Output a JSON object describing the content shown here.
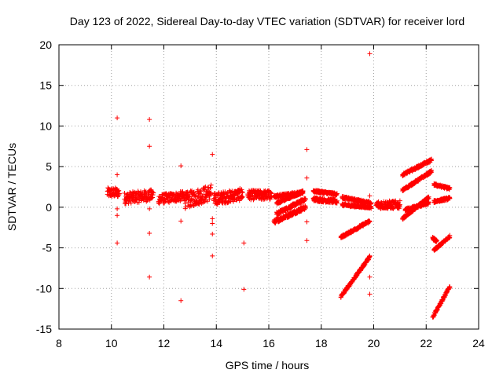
{
  "chart_data": {
    "type": "scatter",
    "title": "Day 123 of 2022, Sidereal Day-to-day VTEC variation (SDTVAR) for receiver lord",
    "xlabel": "GPS time / hours",
    "ylabel": "SDTVAR / TECUs",
    "xlim": [
      8,
      24
    ],
    "ylim": [
      -15,
      20
    ],
    "xticks": [
      "8",
      "10",
      "12",
      "14",
      "16",
      "18",
      "20",
      "22",
      "24"
    ],
    "yticks": [
      "20",
      "15",
      "10",
      "5",
      "0",
      "-5",
      "-10",
      "-15"
    ],
    "grid": true,
    "marker": "plus",
    "color": "#ff0000",
    "series": [
      {
        "name": "SDTVAR",
        "points": [
          [
            10.22,
            11.0
          ],
          [
            11.45,
            10.8
          ],
          [
            11.45,
            7.5
          ],
          [
            12.65,
            5.1
          ],
          [
            13.85,
            6.5
          ],
          [
            17.45,
            7.1
          ],
          [
            17.45,
            3.6
          ],
          [
            10.22,
            4.0
          ],
          [
            10.22,
            -0.2
          ],
          [
            10.22,
            -1.0
          ],
          [
            10.22,
            -4.4
          ],
          [
            11.45,
            -0.2
          ],
          [
            11.45,
            -3.2
          ],
          [
            11.45,
            -8.6
          ],
          [
            12.65,
            -1.7
          ],
          [
            12.65,
            -11.5
          ],
          [
            13.85,
            -1.4
          ],
          [
            13.85,
            -2.0
          ],
          [
            13.85,
            -3.3
          ],
          [
            13.85,
            -6.0
          ],
          [
            15.05,
            -4.4
          ],
          [
            15.05,
            -10.1
          ],
          [
            17.45,
            -1.8
          ],
          [
            17.45,
            -4.1
          ],
          [
            19.85,
            18.9
          ],
          [
            19.85,
            1.4
          ],
          [
            19.85,
            -8.6
          ],
          [
            19.85,
            -10.7
          ]
        ],
        "segments": [
          {
            "x": [
              9.85,
              10.3
            ],
            "y": [
              1.8,
              1.8
            ],
            "spread": 1.2
          },
          {
            "x": [
              10.5,
              11.6
            ],
            "y": [
              1.1,
              1.5
            ],
            "spread": 1.4
          },
          {
            "x": [
              11.8,
              12.8
            ],
            "y": [
              1.0,
              1.4
            ],
            "spread": 1.2
          },
          {
            "x": [
              12.8,
              13.8
            ],
            "y": [
              0.8,
              1.8
            ],
            "spread": 2.0
          },
          {
            "x": [
              13.9,
              15.0
            ],
            "y": [
              1.0,
              1.6
            ],
            "spread": 1.5
          },
          {
            "x": [
              15.2,
              16.1
            ],
            "y": [
              1.5,
              1.5
            ],
            "spread": 1.2
          },
          {
            "x": [
              16.2,
              17.4
            ],
            "y": [
              -1.8,
              0.0
            ],
            "spread": 0.5
          },
          {
            "x": [
              16.3,
              17.4
            ],
            "y": [
              -0.8,
              1.0
            ],
            "spread": 0.4
          },
          {
            "x": [
              16.3,
              17.3
            ],
            "y": [
              0.5,
              1.9
            ],
            "spread": 0.3
          },
          {
            "x": [
              16.2,
              17.3
            ],
            "y": [
              1.3,
              1.8
            ],
            "spread": 0.4
          },
          {
            "x": [
              17.7,
              18.6
            ],
            "y": [
              1.0,
              0.7
            ],
            "spread": 0.5
          },
          {
            "x": [
              17.7,
              18.6
            ],
            "y": [
              2.0,
              1.6
            ],
            "spread": 0.3
          },
          {
            "x": [
              18.8,
              19.9
            ],
            "y": [
              0.3,
              0.0
            ],
            "spread": 0.3
          },
          {
            "x": [
              18.8,
              19.9
            ],
            "y": [
              1.2,
              0.5
            ],
            "spread": 0.3
          },
          {
            "x": [
              18.75,
              19.85
            ],
            "y": [
              -3.7,
              -1.7
            ],
            "spread": 0.3
          },
          {
            "x": [
              18.75,
              19.85
            ],
            "y": [
              -11.0,
              -6.1
            ],
            "spread": 0.3
          },
          {
            "x": [
              20.1,
              21.0
            ],
            "y": [
              0.3,
              0.3
            ],
            "spread": 1.0
          },
          {
            "x": [
              21.1,
              22.2
            ],
            "y": [
              4.0,
              5.8
            ],
            "spread": 0.3
          },
          {
            "x": [
              21.1,
              22.2
            ],
            "y": [
              2.1,
              4.4
            ],
            "spread": 0.3
          },
          {
            "x": [
              21.1,
              22.1
            ],
            "y": [
              -1.4,
              1.2
            ],
            "spread": 0.3
          },
          {
            "x": [
              21.2,
              22.1
            ],
            "y": [
              -0.3,
              0.5
            ],
            "spread": 0.3
          },
          {
            "x": [
              22.3,
              22.9
            ],
            "y": [
              2.8,
              2.3
            ],
            "spread": 0.3
          },
          {
            "x": [
              22.3,
              22.9
            ],
            "y": [
              0.7,
              1.1
            ],
            "spread": 0.3
          },
          {
            "x": [
              22.25,
              22.4
            ],
            "y": [
              -3.8,
              -4.2
            ],
            "spread": 0.3
          },
          {
            "x": [
              22.3,
              22.9
            ],
            "y": [
              -5.3,
              -3.6
            ],
            "spread": 0.3
          },
          {
            "x": [
              22.25,
              22.9
            ],
            "y": [
              -13.5,
              -9.8
            ],
            "spread": 0.3
          }
        ]
      }
    ]
  }
}
